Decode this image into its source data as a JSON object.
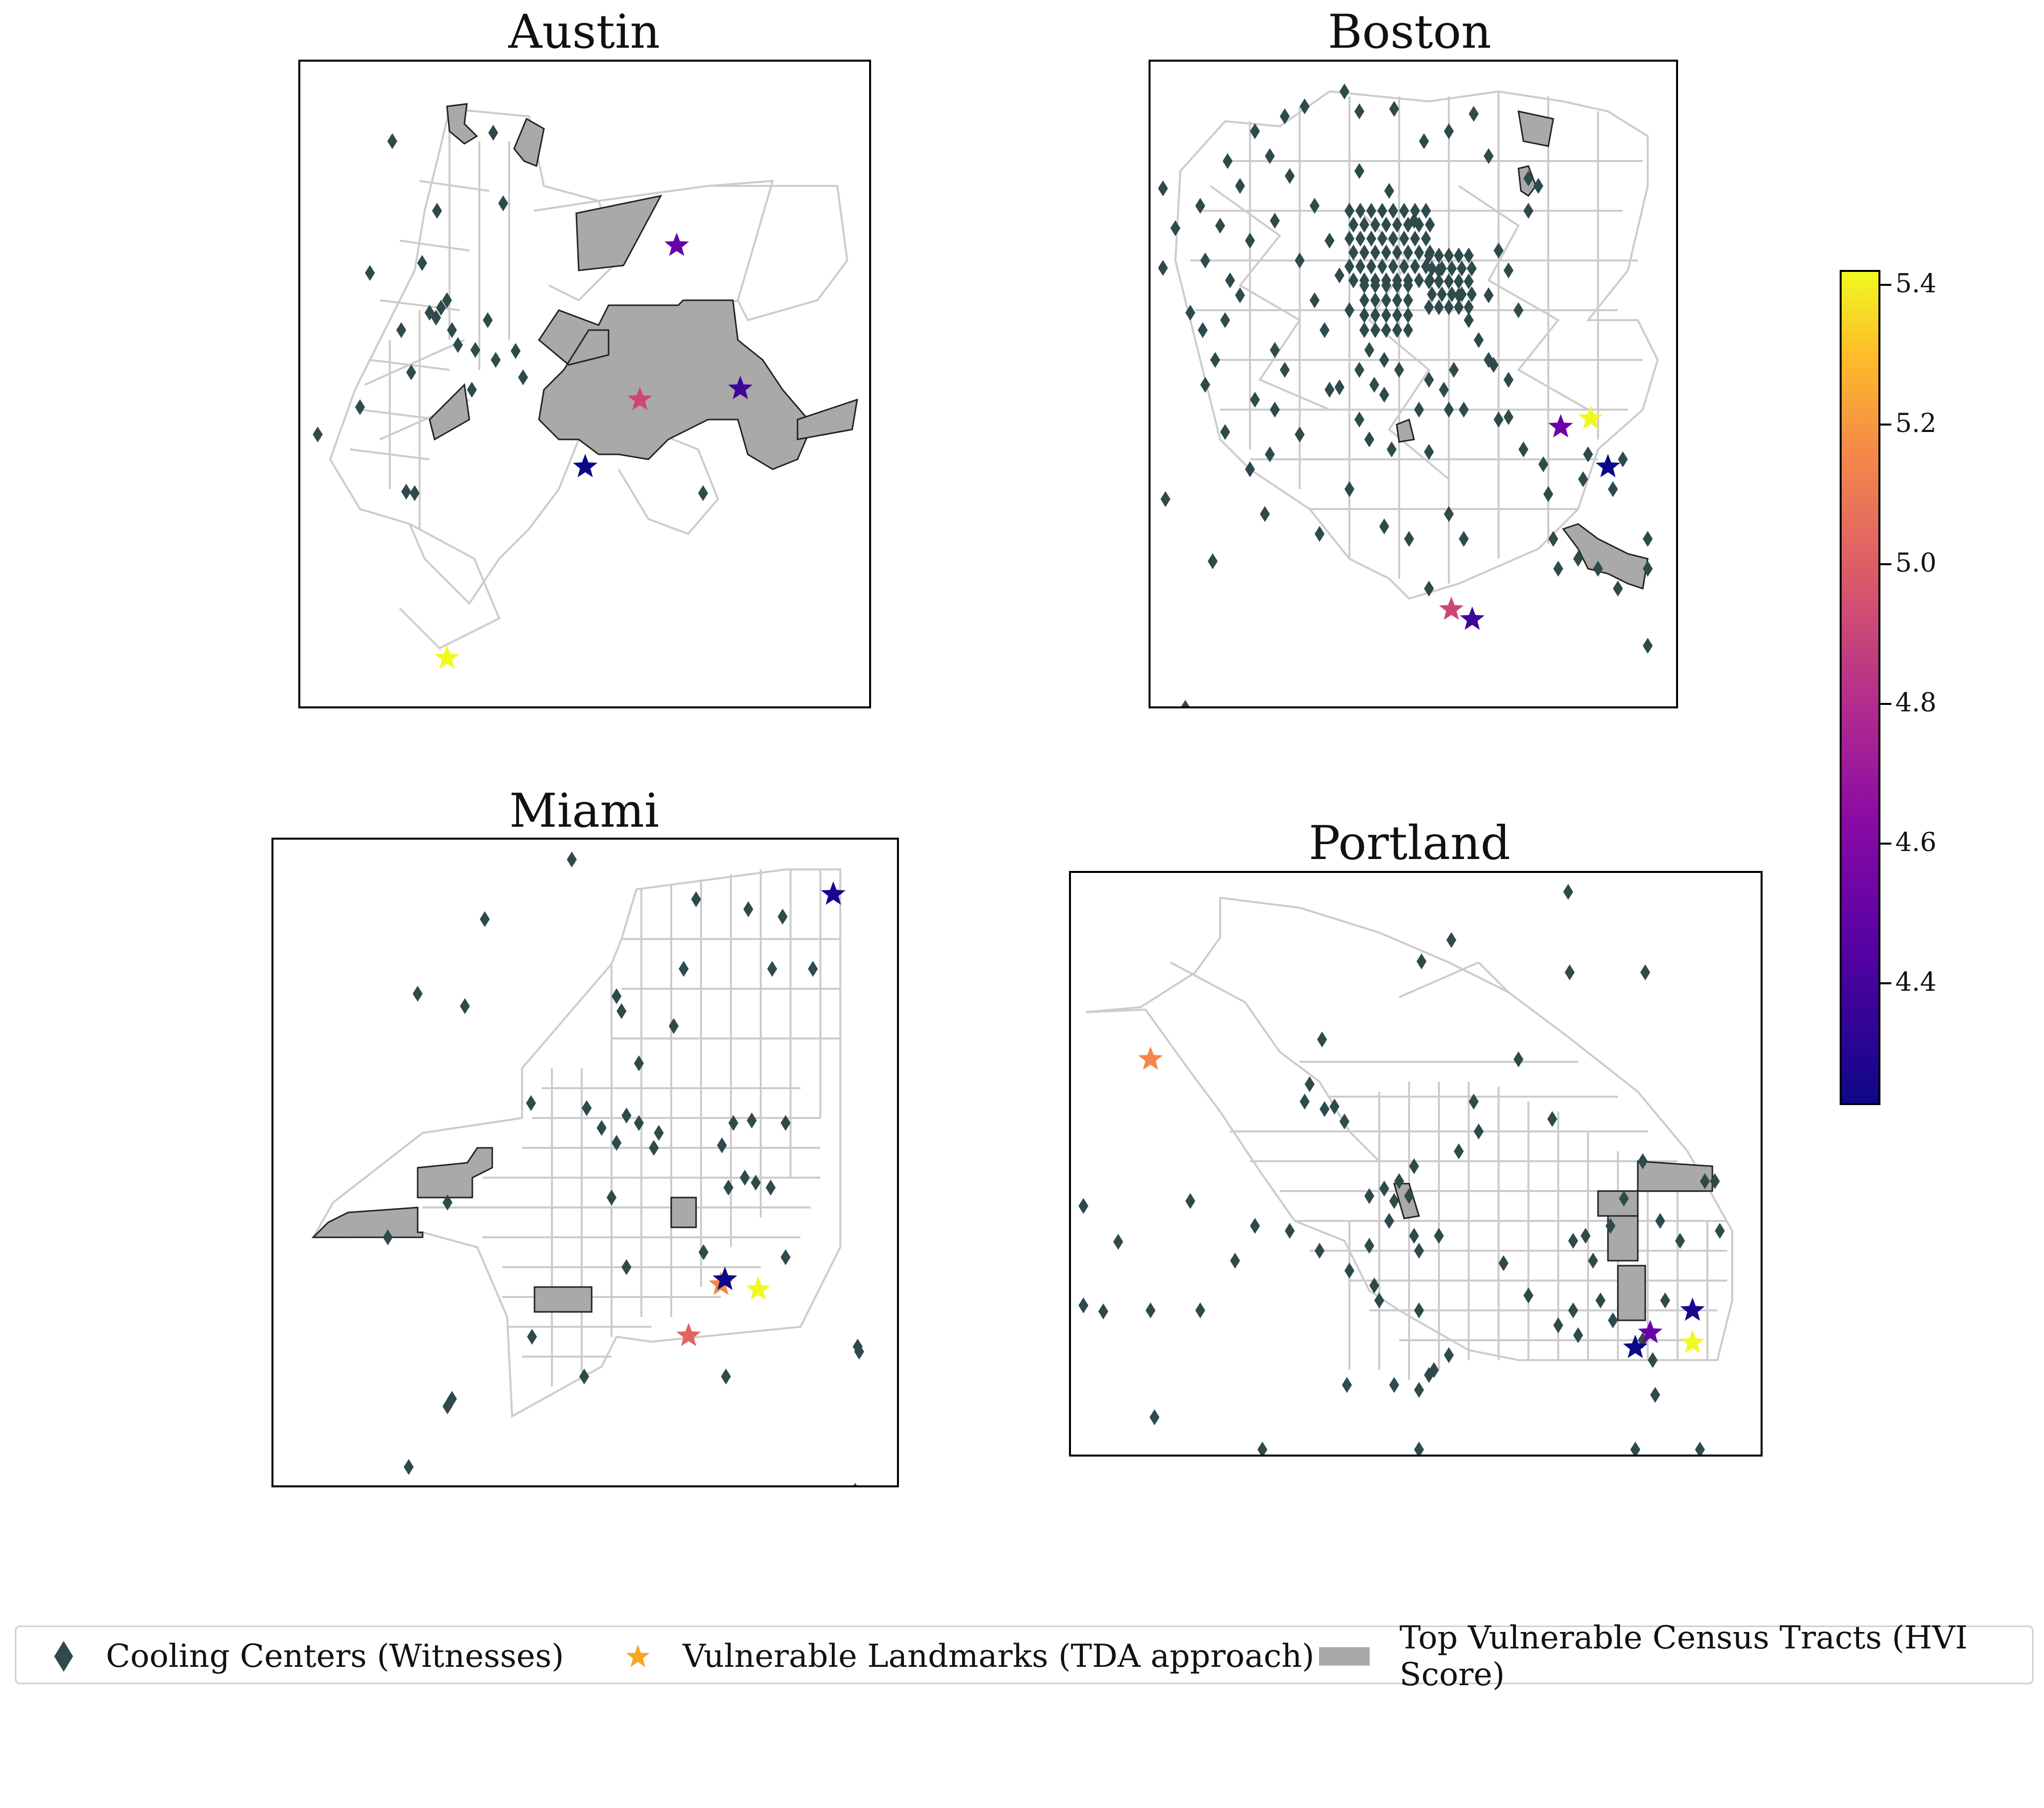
{
  "panels": [
    {
      "id": "austin",
      "title": "Austin"
    },
    {
      "id": "boston",
      "title": "Boston"
    },
    {
      "id": "miami",
      "title": "Miami"
    },
    {
      "id": "portland",
      "title": "Portland"
    }
  ],
  "colorbar": {
    "ticks": [
      "5.4",
      "5.2",
      "5.0",
      "4.8",
      "4.6",
      "4.4"
    ],
    "colormap": "plasma",
    "colors": {
      "low": "#0d0887",
      "high": "#f0f921"
    }
  },
  "legend": {
    "items": [
      {
        "label": "Cooling Centers (Witnesses)",
        "marker": "diamond",
        "color": "#2f4a4a"
      },
      {
        "label": "Vulnerable Landmarks (TDA approach)",
        "marker": "star",
        "color": "#f5a623"
      },
      {
        "label": "Top Vulnerable Census Tracts (HVI Score)",
        "marker": "rect",
        "color": "#a9a9a9"
      }
    ]
  },
  "colors": {
    "cooling_center": "#2f4a4a",
    "tract_outline": "#cccccc",
    "vulnerable_tract": "#a9a9a9"
  }
}
